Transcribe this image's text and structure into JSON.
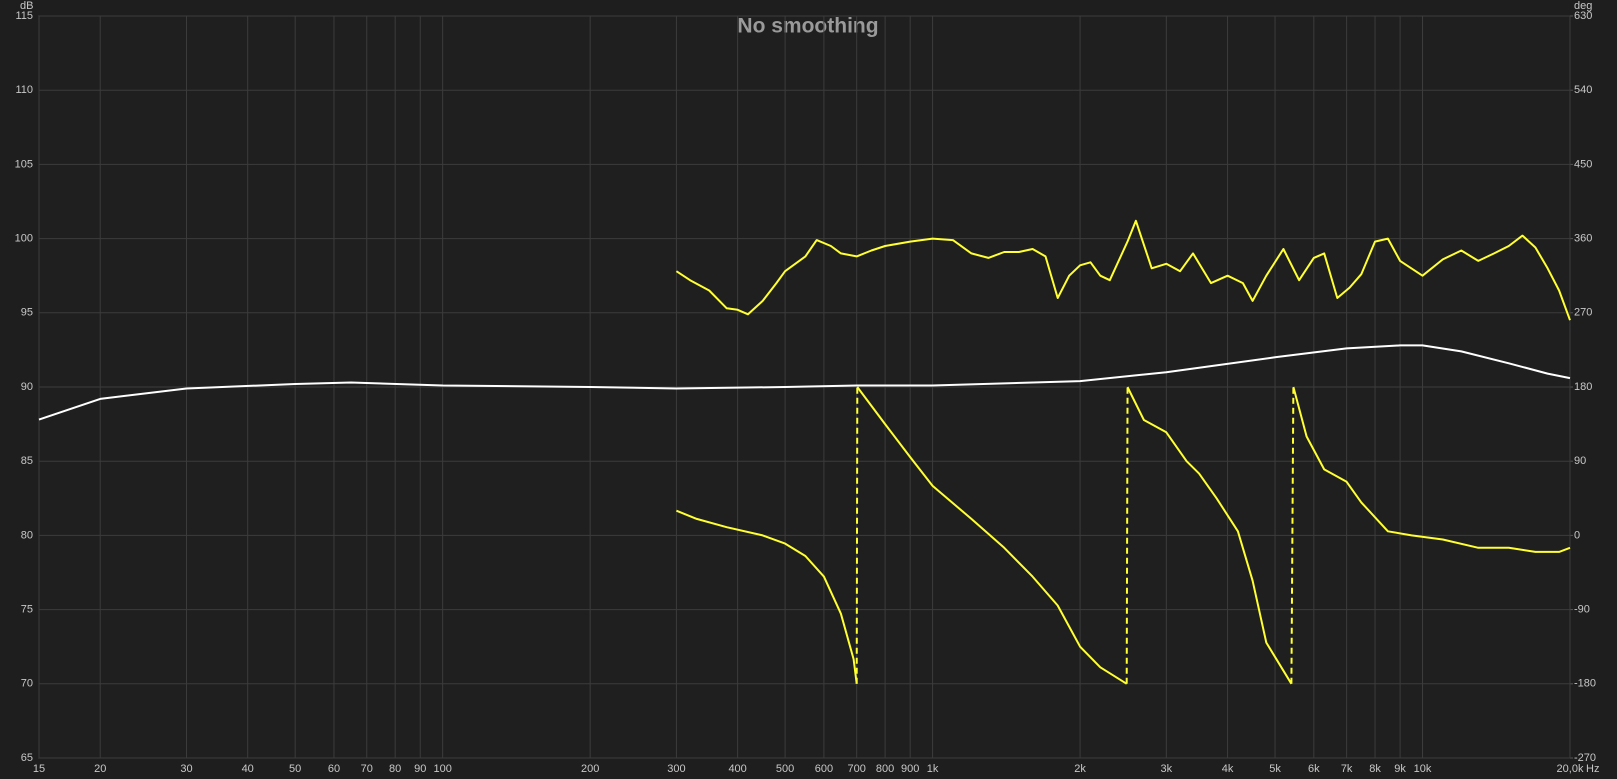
{
  "chart_data": {
    "type": "line",
    "title": "No smoothing",
    "y_label": "dB",
    "y2_label": "deg",
    "x_label": "Hz",
    "xscale": "log",
    "grid": true,
    "xlim": [
      15,
      20000
    ],
    "xticks": [
      15,
      20,
      30,
      40,
      50,
      60,
      70,
      80,
      90,
      100,
      200,
      300,
      400,
      500,
      600,
      700,
      800,
      900,
      {
        "value": 1000,
        "label": "1k"
      },
      {
        "value": 2000,
        "label": "2k"
      },
      {
        "value": 3000,
        "label": "3k"
      },
      {
        "value": 4000,
        "label": "4k"
      },
      {
        "value": 5000,
        "label": "5k"
      },
      {
        "value": 6000,
        "label": "6k"
      },
      {
        "value": 7000,
        "label": "7k"
      },
      {
        "value": 8000,
        "label": "8k"
      },
      {
        "value": 9000,
        "label": "9k"
      },
      {
        "value": 10000,
        "label": "10k"
      },
      {
        "value": 20000,
        "label": "20,0k"
      }
    ],
    "ylim": [
      65,
      115
    ],
    "yticks": [
      65,
      70,
      75,
      80,
      85,
      90,
      95,
      100,
      105,
      110,
      115
    ],
    "y2lim": [
      -270,
      630
    ],
    "y2ticks": [
      -270,
      -180,
      -90,
      0,
      90,
      180,
      270,
      360,
      450,
      540,
      630
    ],
    "series": [
      {
        "color": "#ffffff",
        "x": [
          15,
          20,
          30,
          50,
          65,
          100,
          200,
          300,
          500,
          700,
          1000,
          2000,
          3000,
          5000,
          7000,
          9000,
          10000,
          12000,
          15000,
          18000,
          20000
        ],
        "values": [
          87.8,
          89.2,
          89.9,
          90.2,
          90.3,
          90.1,
          90.0,
          89.9,
          90.0,
          90.1,
          90.1,
          90.4,
          91.0,
          92.0,
          92.6,
          92.8,
          92.8,
          92.4,
          91.6,
          90.9,
          90.6
        ]
      },
      {
        "color": "#ffff33",
        "x": [
          300,
          320,
          350,
          380,
          400,
          420,
          450,
          480,
          500,
          550,
          580,
          620,
          650,
          700,
          750,
          800,
          900,
          1000,
          1100,
          1200,
          1300,
          1400,
          1500,
          1600,
          1700,
          1800,
          1900,
          2000,
          2100,
          2200,
          2300,
          2500,
          2600,
          2800,
          3000,
          3200,
          3400,
          3700,
          4000,
          4300,
          4500,
          4800,
          5200,
          5600,
          6000,
          6300,
          6700,
          7100,
          7500,
          8000,
          8500,
          9000,
          10000,
          11000,
          12000,
          13000,
          14000,
          15000,
          16000,
          17000,
          18000,
          19000,
          20000
        ],
        "values": [
          97.8,
          97.2,
          96.5,
          95.3,
          95.2,
          94.9,
          95.8,
          97.0,
          97.8,
          98.8,
          99.9,
          99.5,
          99.0,
          98.8,
          99.2,
          99.5,
          99.8,
          100.0,
          99.9,
          99.0,
          98.7,
          99.1,
          99.1,
          99.3,
          98.8,
          96.0,
          97.5,
          98.2,
          98.4,
          97.5,
          97.2,
          99.8,
          101.2,
          98.0,
          98.3,
          97.8,
          99.0,
          97.0,
          97.5,
          97.0,
          95.8,
          97.5,
          99.3,
          97.2,
          98.7,
          99.0,
          96.0,
          96.7,
          97.6,
          99.8,
          100.0,
          98.5,
          97.5,
          98.6,
          99.2,
          98.5,
          99.0,
          99.5,
          100.2,
          99.4,
          98.0,
          96.5,
          94.5
        ]
      },
      {
        "color": "#ffff33",
        "axis": "y2",
        "x": [
          300,
          330,
          380,
          450,
          500,
          550,
          600,
          650,
          690,
          700,
          702,
          800,
          900,
          1000,
          1200,
          1400,
          1600,
          1800,
          2000,
          2200,
          2490,
          2500,
          2700,
          3000,
          3300,
          3500,
          3800,
          4200,
          4500,
          4800,
          5400,
          5450,
          5800,
          6300,
          7000,
          7500,
          8500,
          9500,
          11000,
          13000,
          15000,
          17000,
          19000,
          20000
        ],
        "values": [
          30,
          20,
          10,
          0,
          -10,
          -25,
          -50,
          -95,
          -150,
          -180,
          180,
          135,
          95,
          60,
          20,
          -15,
          -50,
          -85,
          -135,
          -160,
          -180,
          180,
          140,
          125,
          90,
          75,
          45,
          5,
          -55,
          -130,
          -180,
          180,
          120,
          80,
          65,
          40,
          5,
          0,
          -5,
          -15,
          -15,
          -20,
          -20,
          -15
        ]
      }
    ]
  }
}
